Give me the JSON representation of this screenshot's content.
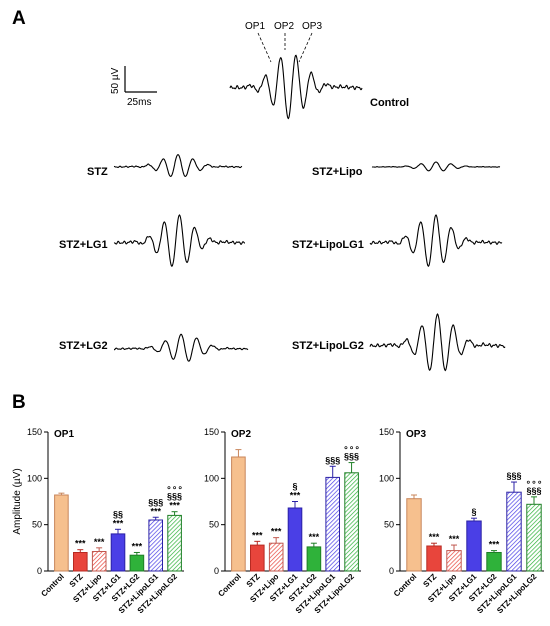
{
  "figure": {
    "panel_a_label": "A",
    "panel_b_label": "B",
    "scale_bar": {
      "vertical": "50 µV",
      "horizontal": "25ms"
    },
    "op_labels": [
      "OP1",
      "OP2",
      "OP3"
    ],
    "traces": [
      {
        "label": "Control",
        "amp": 1.0
      },
      {
        "label": "STZ",
        "amp": 0.35
      },
      {
        "label": "STZ+Lipo",
        "amp": 0.14
      },
      {
        "label": "STZ+LG1",
        "amp": 0.8
      },
      {
        "label": "STZ+LipoLG1",
        "amp": 0.8
      },
      {
        "label": "STZ+LG2",
        "amp": 0.42
      },
      {
        "label": "STZ+LipoLG2",
        "amp": 0.9
      }
    ]
  },
  "chart_data": [
    {
      "type": "bar",
      "title": "OP1",
      "ylabel": "Amplitude (µV)",
      "ylim": [
        0,
        150
      ],
      "yticks": [
        0,
        50,
        100,
        150
      ],
      "categories": [
        "Control",
        "STZ",
        "STZ+Lipo",
        "STZ+LG1",
        "STZ+LG2",
        "STZ+LipoLG1",
        "STZ+LipoLG2"
      ],
      "values": [
        82,
        20,
        21,
        40,
        17,
        55,
        60
      ],
      "errors": [
        2,
        3,
        4,
        5,
        3,
        3,
        4
      ],
      "annotations": [
        [],
        [
          "***"
        ],
        [
          "***"
        ],
        [
          "§§",
          "***"
        ],
        [
          "***"
        ],
        [
          "§§§",
          "***"
        ],
        [
          "∘∘∘",
          "§§§",
          "***"
        ]
      ]
    },
    {
      "type": "bar",
      "title": "OP2",
      "ylabel": "",
      "ylim": [
        0,
        150
      ],
      "yticks": [
        0,
        50,
        100,
        150
      ],
      "categories": [
        "Control",
        "STZ",
        "STZ+Lipo",
        "STZ+LG1",
        "STZ+LG2",
        "STZ+LipoLG1",
        "STZ+LipoLG2"
      ],
      "values": [
        123,
        28,
        30,
        68,
        26,
        101,
        106
      ],
      "errors": [
        8,
        4,
        6,
        7,
        4,
        12,
        11
      ],
      "annotations": [
        [],
        [
          "***"
        ],
        [
          "***"
        ],
        [
          "§",
          "***"
        ],
        [
          "***"
        ],
        [
          "§§§"
        ],
        [
          "∘∘∘",
          "§§§"
        ]
      ]
    },
    {
      "type": "bar",
      "title": "OP3",
      "ylabel": "",
      "ylim": [
        0,
        150
      ],
      "yticks": [
        0,
        50,
        100,
        150
      ],
      "categories": [
        "Control",
        "STZ",
        "STZ+Lipo",
        "STZ+LG1",
        "STZ+LG2",
        "STZ+LipoLG1",
        "STZ+LipoLG2"
      ],
      "values": [
        78,
        27,
        22,
        54,
        20,
        85,
        72
      ],
      "errors": [
        4,
        3,
        6,
        3,
        2,
        11,
        8
      ],
      "annotations": [
        [],
        [
          "***"
        ],
        [
          "***"
        ],
        [
          "§"
        ],
        [
          "***"
        ],
        [
          "§§§"
        ],
        [
          "∘∘∘",
          "§§§"
        ]
      ]
    }
  ],
  "colors": {
    "fills": [
      "#f6c08e",
      "#e8453c",
      "#f4a6a0",
      "#4a3fe6",
      "#2fb23a",
      "#4a3fe6",
      "#2fb23a"
    ],
    "strokes": [
      "#c8855a",
      "#b72a22",
      "#c0584f",
      "#2b21a6",
      "#1e7f26",
      "#2b21a6",
      "#1e7f26"
    ],
    "hatched": [
      false,
      false,
      true,
      false,
      false,
      true,
      true
    ]
  }
}
